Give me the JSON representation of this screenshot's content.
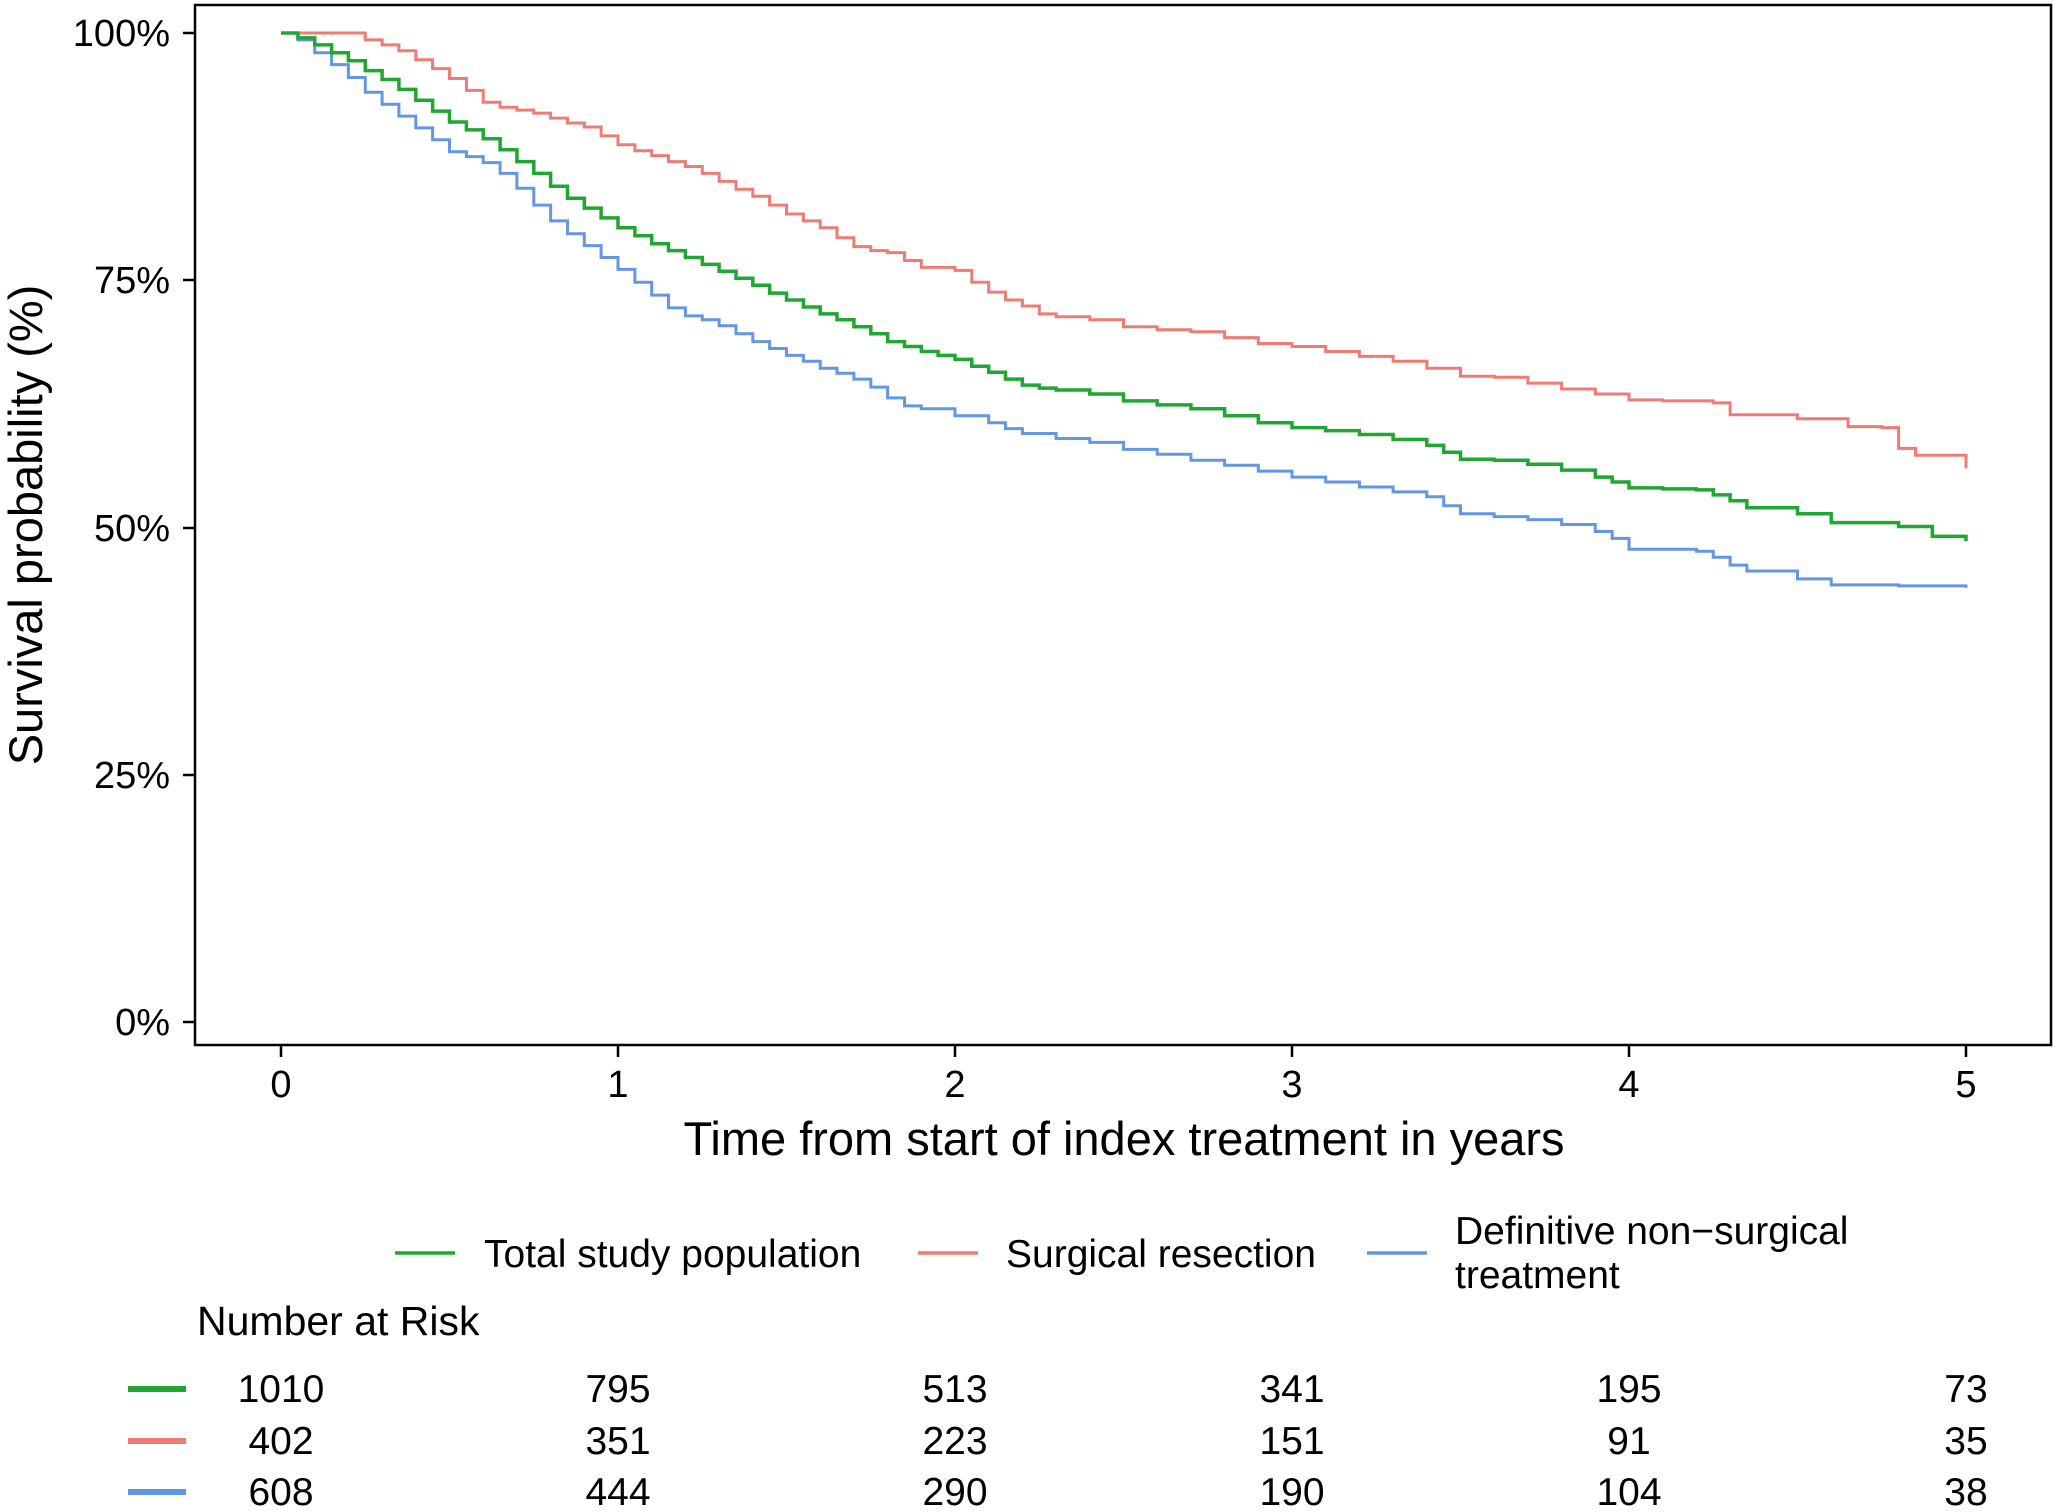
{
  "chart_data": {
    "type": "line",
    "subtype": "kaplan-meier",
    "title": "",
    "xlabel": "Time from start of index treatment in years",
    "ylabel": "Survival probability (%)",
    "xlim": [
      0,
      5
    ],
    "ylim": [
      0,
      100
    ],
    "x_ticks": [
      "0",
      "1",
      "2",
      "3",
      "4",
      "5"
    ],
    "y_ticks": [
      "0%",
      "25%",
      "50%",
      "75%",
      "100%"
    ],
    "grid": false,
    "legend_position": "bottom",
    "series": [
      {
        "name": "Total study population",
        "color": "#1fa731",
        "points": [
          [
            0,
            100
          ],
          [
            0.05,
            99.5
          ],
          [
            0.1,
            98.8
          ],
          [
            0.15,
            98
          ],
          [
            0.2,
            97.2
          ],
          [
            0.25,
            96.2
          ],
          [
            0.3,
            95.3
          ],
          [
            0.35,
            94.3
          ],
          [
            0.4,
            93.2
          ],
          [
            0.45,
            92.1
          ],
          [
            0.5,
            91
          ],
          [
            0.55,
            90.2
          ],
          [
            0.6,
            89.3
          ],
          [
            0.65,
            88.2
          ],
          [
            0.7,
            87
          ],
          [
            0.75,
            85.8
          ],
          [
            0.8,
            84.5
          ],
          [
            0.85,
            83.3
          ],
          [
            0.9,
            82.3
          ],
          [
            0.95,
            81.3
          ],
          [
            1,
            80.3
          ],
          [
            1.05,
            79.5
          ],
          [
            1.1,
            78.7
          ],
          [
            1.15,
            78
          ],
          [
            1.2,
            77.3
          ],
          [
            1.25,
            76.6
          ],
          [
            1.3,
            75.9
          ],
          [
            1.35,
            75.2
          ],
          [
            1.4,
            74.5
          ],
          [
            1.45,
            73.7
          ],
          [
            1.5,
            73
          ],
          [
            1.55,
            72.3
          ],
          [
            1.6,
            71.6
          ],
          [
            1.65,
            71
          ],
          [
            1.7,
            70.3
          ],
          [
            1.75,
            69.6
          ],
          [
            1.8,
            68.8
          ],
          [
            1.85,
            68.3
          ],
          [
            1.9,
            67.8
          ],
          [
            1.95,
            67.4
          ],
          [
            2,
            67
          ],
          [
            2.05,
            66.3
          ],
          [
            2.1,
            65.7
          ],
          [
            2.15,
            65
          ],
          [
            2.2,
            64.4
          ],
          [
            2.25,
            64.1
          ],
          [
            2.3,
            63.9
          ],
          [
            2.4,
            63.5
          ],
          [
            2.5,
            62.8
          ],
          [
            2.6,
            62.4
          ],
          [
            2.7,
            62
          ],
          [
            2.8,
            61.3
          ],
          [
            2.9,
            60.6
          ],
          [
            3,
            60.1
          ],
          [
            3.1,
            59.8
          ],
          [
            3.2,
            59.4
          ],
          [
            3.3,
            58.9
          ],
          [
            3.4,
            58.3
          ],
          [
            3.45,
            57.6
          ],
          [
            3.5,
            56.9
          ],
          [
            3.6,
            56.8
          ],
          [
            3.7,
            56.4
          ],
          [
            3.8,
            55.8
          ],
          [
            3.9,
            55.1
          ],
          [
            3.95,
            54.6
          ],
          [
            4,
            54
          ],
          [
            4.1,
            53.9
          ],
          [
            4.2,
            53.8
          ],
          [
            4.25,
            53.3
          ],
          [
            4.3,
            52.7
          ],
          [
            4.35,
            52
          ],
          [
            4.5,
            51.4
          ],
          [
            4.6,
            50.5
          ],
          [
            4.8,
            50.1
          ],
          [
            4.9,
            49.1
          ],
          [
            5,
            48.6
          ]
        ]
      },
      {
        "name": "Surgical resection",
        "color": "#ee7b74",
        "points": [
          [
            0,
            100
          ],
          [
            0.2,
            100
          ],
          [
            0.25,
            99.3
          ],
          [
            0.3,
            98.8
          ],
          [
            0.35,
            98.2
          ],
          [
            0.4,
            97.3
          ],
          [
            0.45,
            96.4
          ],
          [
            0.5,
            95.4
          ],
          [
            0.55,
            94.2
          ],
          [
            0.6,
            93
          ],
          [
            0.65,
            92.5
          ],
          [
            0.7,
            92.2
          ],
          [
            0.75,
            91.9
          ],
          [
            0.8,
            91.4
          ],
          [
            0.85,
            90.9
          ],
          [
            0.9,
            90.5
          ],
          [
            0.95,
            89.6
          ],
          [
            1,
            88.7
          ],
          [
            1.05,
            88.1
          ],
          [
            1.1,
            87.6
          ],
          [
            1.15,
            87
          ],
          [
            1.2,
            86.5
          ],
          [
            1.25,
            85.8
          ],
          [
            1.3,
            85
          ],
          [
            1.35,
            84.2
          ],
          [
            1.4,
            83.5
          ],
          [
            1.45,
            82.6
          ],
          [
            1.5,
            81.7
          ],
          [
            1.55,
            81
          ],
          [
            1.6,
            80.3
          ],
          [
            1.65,
            79.3
          ],
          [
            1.7,
            78.4
          ],
          [
            1.75,
            78
          ],
          [
            1.8,
            77.8
          ],
          [
            1.85,
            77
          ],
          [
            1.9,
            76.3
          ],
          [
            2,
            76
          ],
          [
            2.05,
            74.8
          ],
          [
            2.1,
            73.8
          ],
          [
            2.15,
            73
          ],
          [
            2.2,
            72.4
          ],
          [
            2.25,
            71.6
          ],
          [
            2.3,
            71.3
          ],
          [
            2.4,
            71
          ],
          [
            2.5,
            70.3
          ],
          [
            2.6,
            70
          ],
          [
            2.7,
            69.8
          ],
          [
            2.8,
            69.2
          ],
          [
            2.9,
            68.6
          ],
          [
            3,
            68.3
          ],
          [
            3.1,
            67.8
          ],
          [
            3.2,
            67.3
          ],
          [
            3.3,
            66.8
          ],
          [
            3.4,
            66.1
          ],
          [
            3.5,
            65.3
          ],
          [
            3.6,
            65.2
          ],
          [
            3.7,
            64.6
          ],
          [
            3.8,
            64
          ],
          [
            3.9,
            63.5
          ],
          [
            4,
            62.9
          ],
          [
            4.1,
            62.8
          ],
          [
            4.25,
            62.6
          ],
          [
            4.3,
            61.4
          ],
          [
            4.5,
            61
          ],
          [
            4.65,
            60.2
          ],
          [
            4.75,
            60.1
          ],
          [
            4.8,
            58
          ],
          [
            4.85,
            57.3
          ],
          [
            4.95,
            57.3
          ],
          [
            5,
            56
          ]
        ]
      },
      {
        "name": "Definitive non−surgical treatment",
        "color": "#6496e6",
        "points": [
          [
            0,
            100
          ],
          [
            0.05,
            99.3
          ],
          [
            0.1,
            98
          ],
          [
            0.15,
            96.8
          ],
          [
            0.2,
            95.5
          ],
          [
            0.25,
            94
          ],
          [
            0.3,
            92.8
          ],
          [
            0.35,
            91.6
          ],
          [
            0.4,
            90.4
          ],
          [
            0.45,
            89.2
          ],
          [
            0.5,
            88
          ],
          [
            0.55,
            87.5
          ],
          [
            0.6,
            86.9
          ],
          [
            0.65,
            85.8
          ],
          [
            0.7,
            84.3
          ],
          [
            0.75,
            82.6
          ],
          [
            0.8,
            81
          ],
          [
            0.85,
            79.7
          ],
          [
            0.9,
            78.5
          ],
          [
            0.95,
            77.3
          ],
          [
            1,
            76.1
          ],
          [
            1.05,
            74.8
          ],
          [
            1.1,
            73.5
          ],
          [
            1.15,
            72.2
          ],
          [
            1.2,
            71.4
          ],
          [
            1.25,
            71
          ],
          [
            1.3,
            70.4
          ],
          [
            1.35,
            69.6
          ],
          [
            1.4,
            68.8
          ],
          [
            1.45,
            68.1
          ],
          [
            1.5,
            67.4
          ],
          [
            1.55,
            66.8
          ],
          [
            1.6,
            66.1
          ],
          [
            1.65,
            65.6
          ],
          [
            1.7,
            65
          ],
          [
            1.75,
            64.2
          ],
          [
            1.8,
            63.1
          ],
          [
            1.85,
            62.3
          ],
          [
            1.9,
            62
          ],
          [
            2,
            61.3
          ],
          [
            2.1,
            60.6
          ],
          [
            2.15,
            60
          ],
          [
            2.2,
            59.5
          ],
          [
            2.3,
            59
          ],
          [
            2.4,
            58.6
          ],
          [
            2.5,
            57.9
          ],
          [
            2.6,
            57.4
          ],
          [
            2.7,
            56.8
          ],
          [
            2.8,
            56.3
          ],
          [
            2.9,
            55.7
          ],
          [
            3,
            55.1
          ],
          [
            3.1,
            54.6
          ],
          [
            3.2,
            54.1
          ],
          [
            3.3,
            53.6
          ],
          [
            3.4,
            53.1
          ],
          [
            3.45,
            52.2
          ],
          [
            3.5,
            51.4
          ],
          [
            3.6,
            51.1
          ],
          [
            3.7,
            50.8
          ],
          [
            3.8,
            50.3
          ],
          [
            3.9,
            49.6
          ],
          [
            3.95,
            48.9
          ],
          [
            4,
            47.8
          ],
          [
            4.1,
            47.8
          ],
          [
            4.2,
            47.6
          ],
          [
            4.25,
            47
          ],
          [
            4.3,
            46.2
          ],
          [
            4.35,
            45.6
          ],
          [
            4.5,
            44.8
          ],
          [
            4.6,
            44.2
          ],
          [
            4.8,
            44.1
          ],
          [
            5,
            43.9
          ]
        ]
      }
    ]
  },
  "risk_table": {
    "title": "Number at Risk",
    "rows": [
      {
        "color": "#1fa731",
        "values": [
          "1010",
          "795",
          "513",
          "341",
          "195",
          "73"
        ]
      },
      {
        "color": "#ee7b74",
        "values": [
          "402",
          "351",
          "223",
          "151",
          "91",
          "35"
        ]
      },
      {
        "color": "#6496e6",
        "values": [
          "608",
          "444",
          "290",
          "190",
          "104",
          "38"
        ]
      }
    ]
  },
  "legend": {
    "items": [
      {
        "label": "Total study population",
        "color": "#1fa731"
      },
      {
        "label": "Surgical resection",
        "color": "#ee7b74"
      },
      {
        "label_line1": "Definitive non−surgical",
        "label_line2": "treatment",
        "color": "#6496e6"
      }
    ]
  }
}
